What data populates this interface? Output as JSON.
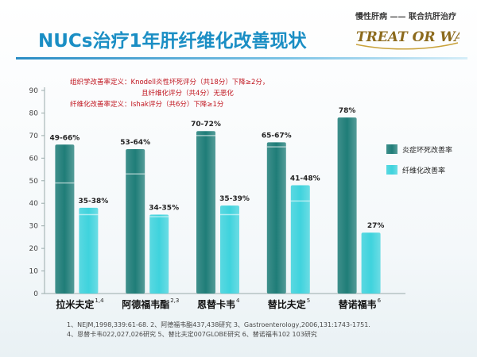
{
  "title": "NUCs治疗1年肝纤维化改善现状",
  "brand": {
    "tagline": "慢性肝病 —— 联合抗肝治疗",
    "logo_text": "TREAT OR WAIT"
  },
  "definitions": [
    "组织学改善率定义：Knodell炎性坏死评分（共18分）下降≥2分，",
    "且纤维化评分（共4分）无恶化",
    "纤维化改善率定义：Ishak评分（共6分）下降≥1分"
  ],
  "chart_data": {
    "type": "bar",
    "categories": [
      {
        "name": "拉米夫定",
        "ref": "1,4"
      },
      {
        "name": "阿德福韦酯",
        "ref": "2,3"
      },
      {
        "name": "恩替卡韦",
        "ref": "4"
      },
      {
        "name": "替比夫定",
        "ref": "5"
      },
      {
        "name": "替诺福韦",
        "ref": "6"
      }
    ],
    "series": [
      {
        "name": "炎症坏死改善率",
        "color": "#1f7d78",
        "ranges": [
          [
            49,
            66
          ],
          [
            53,
            64
          ],
          [
            70,
            72
          ],
          [
            65,
            67
          ],
          [
            null,
            78
          ]
        ],
        "labels": [
          "49-66%",
          "53-64%",
          "70-72%",
          "65-67%",
          "78%"
        ]
      },
      {
        "name": "纤维化改善率",
        "color": "#3fd3dd",
        "ranges": [
          [
            35,
            38
          ],
          [
            34,
            35
          ],
          [
            35,
            39
          ],
          [
            41,
            48
          ],
          [
            null,
            27
          ]
        ],
        "labels": [
          "35-38%",
          "34-35%",
          "35-39%",
          "41-48%",
          "27%"
        ]
      }
    ],
    "ylim": [
      0,
      90
    ],
    "yticks": [
      "0",
      "10",
      "20",
      "30",
      "40",
      "50",
      "60",
      "70",
      "80",
      "90"
    ],
    "legend_position": "right",
    "grid": false
  },
  "references": [
    "1、NEJM,1998,339:61-68.  2、阿德福韦酯437,438研究 3、Gastroenterology,2006,131:1743-1751.",
    "4、恩替卡韦022,027,026研究 5、替比夫定007GLOBE研究 6、替诺福韦102 103研究"
  ]
}
